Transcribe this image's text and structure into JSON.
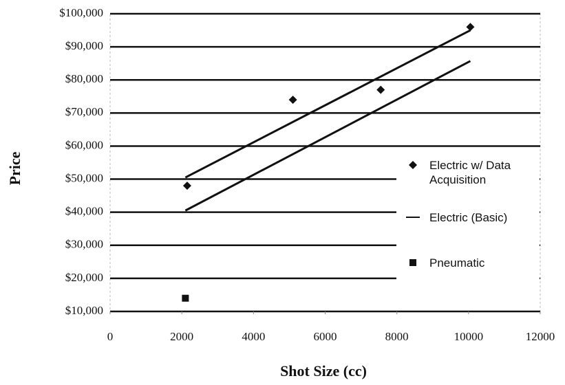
{
  "chart_data": {
    "type": "scatter",
    "x_label": "Shot Size (cc)",
    "y_label": "Price",
    "xlim": [
      0,
      12000
    ],
    "xticks": [
      0,
      2000,
      4000,
      6000,
      8000,
      10000,
      12000
    ],
    "ylim": [
      10000,
      100000
    ],
    "yticks": [
      {
        "value": 10000,
        "label": "$10,000"
      },
      {
        "value": 20000,
        "label": "$20,000"
      },
      {
        "value": 30000,
        "label": "$30,000"
      },
      {
        "value": 40000,
        "label": "$40,000"
      },
      {
        "value": 50000,
        "label": "$50,000"
      },
      {
        "value": 60000,
        "label": "$60,000"
      },
      {
        "value": 70000,
        "label": "$70,000"
      },
      {
        "value": 80000,
        "label": "$80,000"
      },
      {
        "value": 90000,
        "label": "$90,000"
      },
      {
        "value": 100000,
        "label": "$100,000"
      }
    ],
    "grid": true,
    "series": [
      {
        "name": "Electric w/ Data Acquisition",
        "marker": "diamond",
        "color": "#111111",
        "x": [
          2150,
          5100,
          7550,
          10050
        ],
        "values": [
          48000,
          74000,
          77000,
          96000
        ]
      },
      {
        "name": "Electric (Basic)",
        "marker": "line",
        "color": "#111111",
        "x": [
          2100,
          10050
        ],
        "values": [
          40500,
          85700
        ]
      },
      {
        "name": "Pneumatic",
        "marker": "square",
        "color": "#111111",
        "x": [
          2100
        ],
        "values": [
          14000
        ]
      },
      {
        "marker": "line",
        "color": "#111111",
        "x": [
          2100,
          10050
        ],
        "values": [
          50500,
          95000
        ]
      }
    ]
  }
}
